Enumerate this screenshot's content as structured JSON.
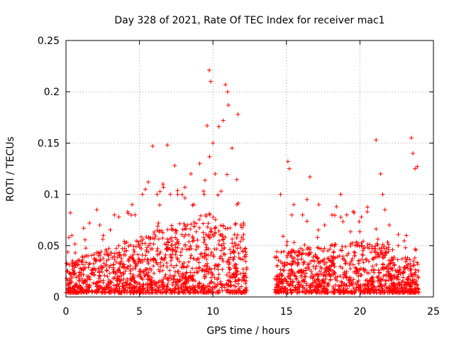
{
  "chart_data": {
    "type": "scatter",
    "title": "Day 328 of 2021, Rate Of TEC Index for receiver mac1",
    "xlabel": "GPS time / hours",
    "ylabel": "ROTI / TECUs",
    "xlim": [
      0,
      25
    ],
    "ylim": [
      0,
      0.25
    ],
    "x_ticks": [
      "0",
      "5",
      "10",
      "15",
      "20",
      "25"
    ],
    "y_ticks": [
      "0",
      "0.05",
      "0.1",
      "0.15",
      "0.2",
      "0.25"
    ],
    "grid": true,
    "marker": "plus",
    "color": "#ff0000",
    "data_gap_hours": [
      12.3,
      14.2
    ],
    "series": [
      {
        "x": [
          0.2,
          0.3,
          0.4,
          1.2,
          1.6,
          2.1,
          2.3,
          3.3,
          3.6,
          4.2,
          4.5,
          4.7,
          5.2,
          5.4,
          5.6,
          5.9,
          6.2,
          6.6,
          6.9,
          7.1,
          7.4,
          7.6,
          8.1,
          8.5,
          8.7,
          9.1,
          9.4,
          9.6,
          9.75,
          9.85,
          10.0,
          10.15,
          10.4,
          10.7,
          10.85,
          11.0,
          11.05,
          11.3,
          11.7,
          11.9,
          12.1,
          14.6,
          15.1,
          15.2,
          15.5,
          16.1,
          16.4,
          16.6,
          17.2,
          17.6,
          18.1,
          18.4,
          18.7,
          19.1,
          19.6,
          20.1,
          20.5,
          21.1,
          21.4,
          21.55,
          21.7,
          22.0,
          22.6,
          23.1,
          23.5,
          23.6,
          23.75,
          23.9
        ],
        "y": [
          0.058,
          0.082,
          0.06,
          0.067,
          0.072,
          0.085,
          0.07,
          0.08,
          0.078,
          0.083,
          0.09,
          0.08,
          0.1,
          0.105,
          0.112,
          0.147,
          0.1,
          0.11,
          0.148,
          0.1,
          0.128,
          0.1,
          0.107,
          0.12,
          0.09,
          0.13,
          0.1,
          0.167,
          0.221,
          0.21,
          0.15,
          0.12,
          0.166,
          0.172,
          0.207,
          0.2,
          0.187,
          0.145,
          0.178,
          0.07,
          0.07,
          0.1,
          0.132,
          0.125,
          0.09,
          0.08,
          0.095,
          0.117,
          0.09,
          0.07,
          0.08,
          0.088,
          0.1,
          0.08,
          0.082,
          0.078,
          0.083,
          0.153,
          0.12,
          0.1,
          0.085,
          0.07,
          0.05,
          0.048,
          0.155,
          0.14,
          0.125,
          0.127
        ]
      }
    ]
  }
}
